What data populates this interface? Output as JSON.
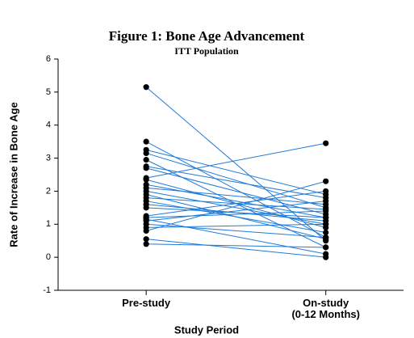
{
  "chart_data": {
    "type": "paired-line",
    "title": "Figure 1: Bone Age Advancement",
    "subtitle": "ITT Population",
    "y_label": "Rate of Increase in Bone Age",
    "x_label": "Study Period",
    "categories": [
      "Pre-study",
      "On-study\n(0-12 Months)"
    ],
    "line_color": "#1f7ad8",
    "marker_color": "#000000",
    "ylim": [
      -1,
      6
    ],
    "yticks": [
      -1,
      0,
      1,
      2,
      3,
      4,
      5,
      6
    ],
    "series": [
      {
        "values": [
          5.15,
          0.5
        ]
      },
      {
        "values": [
          3.5,
          0.6
        ]
      },
      {
        "values": [
          3.25,
          1.9
        ]
      },
      {
        "values": [
          3.15,
          1.5
        ]
      },
      {
        "values": [
          2.95,
          0.3
        ]
      },
      {
        "values": [
          2.75,
          1.8
        ]
      },
      {
        "values": [
          2.7,
          1.3
        ]
      },
      {
        "values": [
          2.4,
          3.45
        ]
      },
      {
        "values": [
          2.35,
          0.9
        ]
      },
      {
        "values": [
          2.2,
          1.2
        ]
      },
      {
        "values": [
          2.1,
          1.6
        ]
      },
      {
        "values": [
          2.0,
          1.0
        ]
      },
      {
        "values": [
          1.9,
          0.55
        ]
      },
      {
        "values": [
          1.8,
          1.45
        ]
      },
      {
        "values": [
          1.7,
          0.75
        ]
      },
      {
        "values": [
          1.6,
          1.1
        ]
      },
      {
        "values": [
          1.5,
          1.2
        ]
      },
      {
        "values": [
          1.25,
          2.0
        ]
      },
      {
        "values": [
          1.2,
          1.4
        ]
      },
      {
        "values": [
          1.15,
          0.1
        ]
      },
      {
        "values": [
          1.1,
          1.7
        ]
      },
      {
        "values": [
          1.0,
          0.6
        ]
      },
      {
        "values": [
          0.9,
          1.0
        ]
      },
      {
        "values": [
          0.8,
          2.3
        ]
      },
      {
        "values": [
          0.55,
          0.0
        ]
      },
      {
        "values": [
          0.4,
          0.3
        ]
      }
    ]
  }
}
